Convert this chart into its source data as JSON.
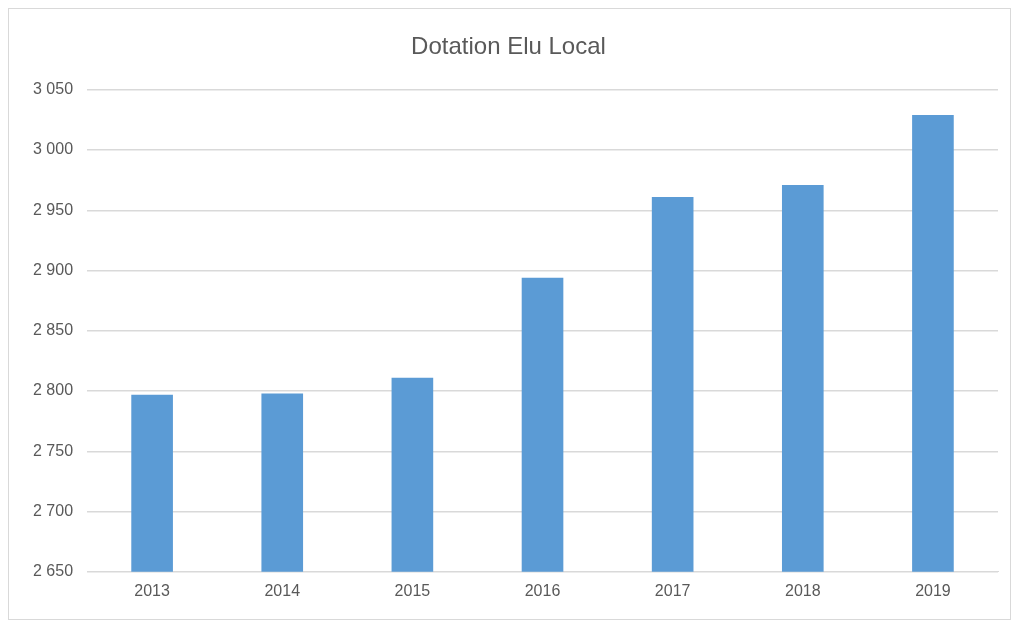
{
  "chart_data": {
    "type": "bar",
    "title": "Dotation Elu Local",
    "categories": [
      "2013",
      "2014",
      "2015",
      "2016",
      "2017",
      "2018",
      "2019"
    ],
    "values": [
      2797,
      2798,
      2811,
      2894,
      2961,
      2971,
      3029
    ],
    "color": "#5b9bd5",
    "ylim": [
      2650,
      3050
    ],
    "yticks": [
      {
        "value": 2650,
        "label": "2 650"
      },
      {
        "value": 2700,
        "label": "2 700"
      },
      {
        "value": 2750,
        "label": "2 750"
      },
      {
        "value": 2800,
        "label": "2 800"
      },
      {
        "value": 2850,
        "label": "2 850"
      },
      {
        "value": 2900,
        "label": "2 900"
      },
      {
        "value": 2950,
        "label": "2 950"
      },
      {
        "value": 3000,
        "label": "3 000"
      },
      {
        "value": 3050,
        "label": "3 050"
      }
    ],
    "grid": "y"
  }
}
